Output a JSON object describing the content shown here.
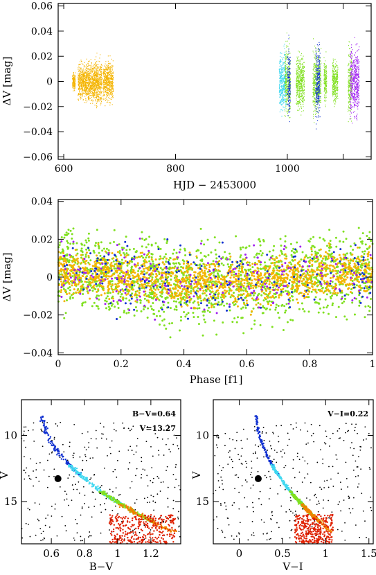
{
  "colors": {
    "orange": "#f4b400",
    "cyan": "#40d8f0",
    "green": "#80e020",
    "blue": "#1030d0",
    "purple": "#a020f0",
    "black": "#000000",
    "red": "#e02000",
    "dark_orange": "#f08000"
  },
  "chart_data": [
    {
      "type": "scatter",
      "name": "light-curve",
      "xlabel": "HJD − 2453000",
      "ylabel": "ΔV [mag]",
      "xlim": [
        590,
        1150
      ],
      "ylim": [
        0.062,
        -0.062
      ],
      "x_ticks": [
        600,
        800,
        1000,
        1100
      ],
      "x_tick_labels": [
        "600",
        "800",
        "1000",
        ""
      ],
      "y_ticks": [
        -0.06,
        -0.04,
        -0.02,
        0,
        0.02,
        0.04,
        0.06
      ],
      "y_tick_labels": [
        "−0.06",
        "−0.04",
        "−0.02",
        "0",
        "0.02",
        "0.04",
        "0.06"
      ],
      "series": [
        {
          "color_key": "orange",
          "segments": [
            [
              615,
              620,
              0.012
            ],
            [
              625,
              640,
              0.025
            ],
            [
              640,
              655,
              0.028
            ],
            [
              655,
              668,
              0.03
            ],
            [
              670,
              688,
              0.028
            ]
          ]
        },
        {
          "color_key": "cyan",
          "segments": [
            [
              985,
              998,
              0.04
            ]
          ]
        },
        {
          "color_key": "green",
          "segments": [
            [
              995,
              1005,
              0.05
            ],
            [
              1015,
              1030,
              0.038
            ],
            [
              1045,
              1060,
              0.045
            ],
            [
              1065,
              1070,
              0.03
            ],
            [
              1080,
              1090,
              0.03
            ],
            [
              1108,
              1115,
              0.05
            ]
          ]
        },
        {
          "color_key": "blue",
          "segments": [
            [
              1000,
              1005,
              0.05
            ],
            [
              1050,
              1058,
              0.055
            ]
          ]
        },
        {
          "color_key": "purple",
          "segments": [
            [
              1112,
              1128,
              0.05
            ]
          ]
        }
      ]
    },
    {
      "type": "scatter",
      "name": "phased-light-curve",
      "xlabel": "Phase [f1]",
      "ylabel": "ΔV [mag]",
      "xlim": [
        0,
        1
      ],
      "ylim": [
        0.041,
        -0.041
      ],
      "x_ticks": [
        0,
        0.2,
        0.4,
        0.6,
        0.8,
        1
      ],
      "x_tick_labels": [
        "0",
        "0.2",
        "0.4",
        "0.6",
        "0.8",
        "1"
      ],
      "y_ticks": [
        -0.04,
        -0.02,
        0,
        0.02,
        0.04
      ],
      "y_tick_labels": [
        "−0.04",
        "−0.02",
        "0",
        "0.02",
        "0.04"
      ],
      "series": [
        {
          "color_key": "green",
          "spread": 0.036
        },
        {
          "color_key": "orange",
          "spread": 0.02
        },
        {
          "color_key": "blue",
          "spread": 0.03
        },
        {
          "color_key": "purple",
          "spread": 0.03
        }
      ]
    },
    {
      "type": "scatter",
      "name": "cmd-bv",
      "xlabel": "B−V",
      "ylabel": "V",
      "xlim": [
        0.42,
        1.38
      ],
      "ylim": [
        7.3,
        18.2
      ],
      "x_ticks": [
        0.6,
        0.8,
        1.0,
        1.2
      ],
      "x_tick_labels": [
        "0.6",
        "0.8",
        "1",
        "1.2"
      ],
      "y_ticks": [
        10,
        15
      ],
      "y_tick_labels": [
        "10",
        "15"
      ],
      "annotation_lines": [
        "B−V=0.64",
        "V=13.27"
      ],
      "star": {
        "x": 0.64,
        "y": 13.27
      }
    },
    {
      "type": "scatter",
      "name": "cmd-vi",
      "xlabel": "V−I",
      "ylabel": "V",
      "xlim": [
        -0.3,
        1.55
      ],
      "ylim": [
        7.3,
        18.2
      ],
      "x_ticks": [
        0,
        0.5,
        1.0,
        1.5
      ],
      "x_tick_labels": [
        "0",
        "0.5",
        "1",
        "1.5"
      ],
      "y_ticks": [
        10,
        15
      ],
      "y_tick_labels": [
        "10",
        "15"
      ],
      "annotation_lines": [
        "V−I=0.22"
      ],
      "star": {
        "x": 0.22,
        "y": 13.27
      }
    }
  ]
}
